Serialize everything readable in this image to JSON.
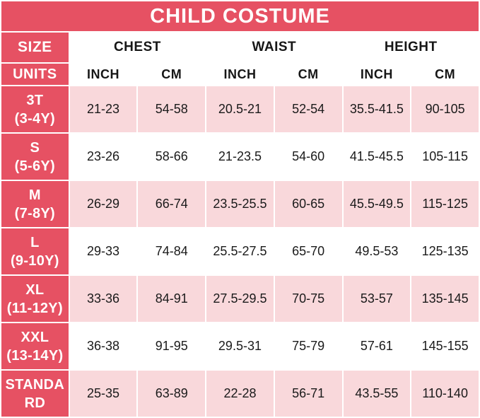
{
  "title": "CHILD COSTUME",
  "colors": {
    "crimson": "#e65163",
    "light_pink": "#f9d8db",
    "white": "#ffffff",
    "text_dark": "#1a1a1a"
  },
  "table": {
    "size_header": "SIZE",
    "units_header": "UNITS",
    "groups": [
      "CHEST",
      "WAIST",
      "HEIGHT"
    ],
    "units": [
      "INCH",
      "CM",
      "INCH",
      "CM",
      "INCH",
      "CM"
    ],
    "rows": [
      {
        "size_lines": [
          "3T",
          "(3-4Y)"
        ],
        "values": [
          "21-23",
          "54-58",
          "20.5-21",
          "52-54",
          "35.5-41.5",
          "90-105"
        ]
      },
      {
        "size_lines": [
          "S",
          "(5-6Y)"
        ],
        "values": [
          "23-26",
          "58-66",
          "21-23.5",
          "54-60",
          "41.5-45.5",
          "105-115"
        ]
      },
      {
        "size_lines": [
          "M",
          "(7-8Y)"
        ],
        "values": [
          "26-29",
          "66-74",
          "23.5-25.5",
          "60-65",
          "45.5-49.5",
          "115-125"
        ]
      },
      {
        "size_lines": [
          "L",
          "(9-10Y)"
        ],
        "values": [
          "29-33",
          "74-84",
          "25.5-27.5",
          "65-70",
          "49.5-53",
          "125-135"
        ]
      },
      {
        "size_lines": [
          "XL",
          "(11-12Y)"
        ],
        "values": [
          "33-36",
          "84-91",
          "27.5-29.5",
          "70-75",
          "53-57",
          "135-145"
        ]
      },
      {
        "size_lines": [
          "XXL",
          "(13-14Y)"
        ],
        "values": [
          "36-38",
          "91-95",
          "29.5-31",
          "75-79",
          "57-61",
          "145-155"
        ]
      },
      {
        "size_lines": [
          "STANDA",
          "RD"
        ],
        "values": [
          "25-35",
          "63-89",
          "22-28",
          "56-71",
          "43.5-55",
          "110-140"
        ]
      }
    ]
  },
  "chart_data": {
    "type": "table",
    "title": "CHILD COSTUME",
    "column_groups": [
      "CHEST",
      "WAIST",
      "HEIGHT"
    ],
    "columns": [
      "SIZE",
      "CHEST INCH",
      "CHEST CM",
      "WAIST INCH",
      "WAIST CM",
      "HEIGHT INCH",
      "HEIGHT CM"
    ],
    "rows": [
      [
        "3T (3-4Y)",
        "21-23",
        "54-58",
        "20.5-21",
        "52-54",
        "35.5-41.5",
        "90-105"
      ],
      [
        "S (5-6Y)",
        "23-26",
        "58-66",
        "21-23.5",
        "54-60",
        "41.5-45.5",
        "105-115"
      ],
      [
        "M (7-8Y)",
        "26-29",
        "66-74",
        "23.5-25.5",
        "60-65",
        "45.5-49.5",
        "115-125"
      ],
      [
        "L (9-10Y)",
        "29-33",
        "74-84",
        "25.5-27.5",
        "65-70",
        "49.5-53",
        "125-135"
      ],
      [
        "XL (11-12Y)",
        "33-36",
        "84-91",
        "27.5-29.5",
        "70-75",
        "53-57",
        "135-145"
      ],
      [
        "XXL (13-14Y)",
        "36-38",
        "91-95",
        "29.5-31",
        "75-79",
        "57-61",
        "145-155"
      ],
      [
        "STANDARD",
        "25-35",
        "63-89",
        "22-28",
        "56-71",
        "43.5-55",
        "110-140"
      ]
    ]
  }
}
